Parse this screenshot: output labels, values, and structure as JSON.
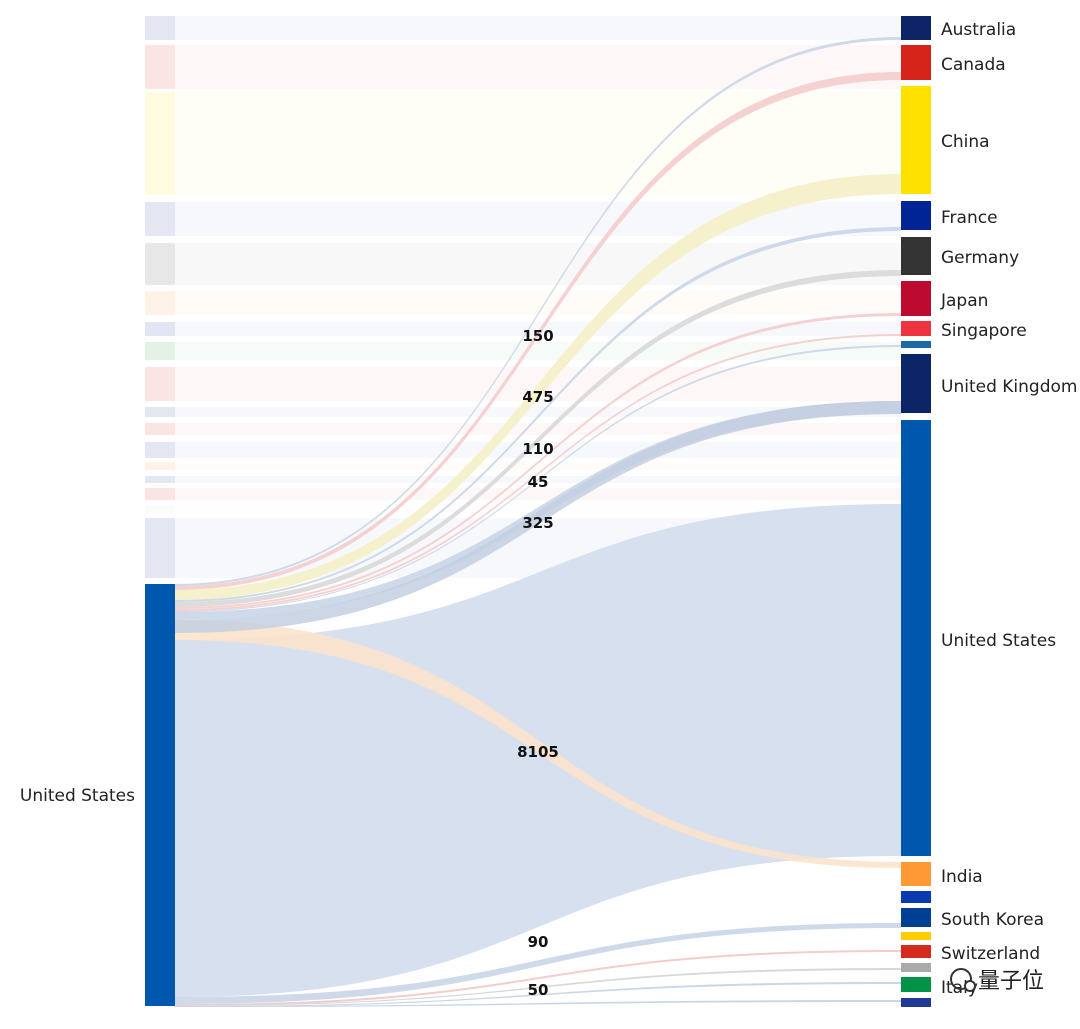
{
  "chart_data": {
    "type": "sankey",
    "source_nodes": [
      {
        "name": "",
        "value": 150,
        "color": "#1f3a93"
      },
      {
        "name": "",
        "value": 320,
        "color": "#d7241a"
      },
      {
        "name": "",
        "value": 1530,
        "color": "#ffe100"
      },
      {
        "name": "",
        "value": 380,
        "color": "#1f3a93"
      },
      {
        "name": "",
        "value": 600,
        "color": "#333333"
      },
      {
        "name": "",
        "value": 320,
        "color": "#ff9c33"
      },
      {
        "name": "",
        "value": 150,
        "color": "#0a2a9a"
      },
      {
        "name": "",
        "value": 220,
        "color": "#1a8c3a"
      },
      {
        "name": "",
        "value": 500,
        "color": "#d7241a"
      },
      {
        "name": "",
        "value": 100,
        "color": "#1f3a93"
      },
      {
        "name": "",
        "value": 150,
        "color": "#d7241a"
      },
      {
        "name": "",
        "value": 220,
        "color": "#1f3a93"
      },
      {
        "name": "",
        "value": 90,
        "color": "#ff9c33"
      },
      {
        "name": "",
        "value": 60,
        "color": "#1f3a93"
      },
      {
        "name": "",
        "value": 120,
        "color": "#d7241a"
      },
      {
        "name": "",
        "value": 60,
        "color": "#dddddd"
      },
      {
        "name": "",
        "value": 900,
        "color": "#1f3a93"
      },
      {
        "name": "United States",
        "value": 9400,
        "color": "#0057ae"
      }
    ],
    "target_nodes": [
      {
        "name": "Australia",
        "color": "#0b2566"
      },
      {
        "name": "Canada",
        "color": "#d7241a"
      },
      {
        "name": "China",
        "color": "#ffe100"
      },
      {
        "name": "France",
        "color": "#002395"
      },
      {
        "name": "Germany",
        "color": "#333333"
      },
      {
        "name": "Japan",
        "color": "#bc0a31"
      },
      {
        "name": "Singapore",
        "color": "#ef3340"
      },
      {
        "name": "",
        "color": "#1a6aa6"
      },
      {
        "name": "United Kingdom",
        "color": "#0b2566"
      },
      {
        "name": "United States",
        "color": "#0057ae"
      },
      {
        "name": "India",
        "color": "#ff9933"
      },
      {
        "name": "",
        "color": "#0a3ab0"
      },
      {
        "name": "South Korea",
        "color": "#003f91"
      },
      {
        "name": "",
        "color": "#ffcd00"
      },
      {
        "name": "Switzerland",
        "color": "#d52b1e"
      },
      {
        "name": "",
        "color": "#aaaaaa"
      },
      {
        "name": "Italy",
        "color": "#009246"
      },
      {
        "name": "",
        "color": "#1f3a93"
      }
    ],
    "highlighted_flows": [
      {
        "source": "United States",
        "target": "Australia",
        "value": 30,
        "label": "",
        "color": "#c9d6e8"
      },
      {
        "source": "United States",
        "target": "Canada",
        "value": 150,
        "label": "150",
        "color": "#f4cccc"
      },
      {
        "source": "United States",
        "target": "China",
        "value": 475,
        "label": "475",
        "color": "#f5efc8"
      },
      {
        "source": "United States",
        "target": "France",
        "value": 40,
        "label": "",
        "color": "#c9d6e8"
      },
      {
        "source": "United States",
        "target": "Germany",
        "value": 110,
        "label": "110",
        "color": "#d8d8d8"
      },
      {
        "source": "United States",
        "target": "Japan",
        "value": 20,
        "label": "",
        "color": "#f4cccc"
      },
      {
        "source": "United States",
        "target": "Singapore",
        "value": 15,
        "label": "",
        "color": "#f4cccc"
      },
      {
        "source": "United States",
        "target": "",
        "value": 10,
        "label": "",
        "color": "#c9d6e8"
      },
      {
        "source": "United States",
        "target": "United Kingdom",
        "value": 45,
        "label": "45",
        "color": "#c9d6e8"
      },
      {
        "source": "United States",
        "target": "United States",
        "value": 8105,
        "label": "8105",
        "color": "#d1dded"
      },
      {
        "source": "United States",
        "target": "India",
        "value": 90,
        "label": "90",
        "color": "#fbe3cc"
      },
      {
        "source": "United States",
        "target": "South Korea",
        "value": 50,
        "label": "50",
        "color": "#c9d6e8"
      }
    ],
    "value_labels": [
      "150",
      "475",
      "110",
      "45",
      "325",
      "8105",
      "90",
      "50"
    ]
  },
  "watermark": {
    "text": "量子位",
    "icon": "wechat-icon"
  }
}
